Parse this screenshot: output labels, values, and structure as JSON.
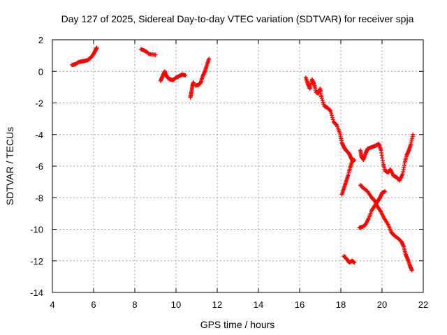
{
  "chart_data": {
    "type": "scatter",
    "title": "Day 127 of 2025, Sidereal Day-to-day VTEC variation (SDTVAR) for receiver spja",
    "xlabel": "GPS time / hours",
    "ylabel": "SDTVAR / TECUs",
    "xlim": [
      4,
      22
    ],
    "ylim": [
      -14,
      2
    ],
    "xticks": [
      4,
      6,
      8,
      10,
      12,
      14,
      16,
      18,
      20,
      22
    ],
    "yticks": [
      -14,
      -12,
      -10,
      -8,
      -6,
      -4,
      -2,
      0,
      2
    ],
    "grid": true,
    "marker": "+",
    "series": [
      {
        "name": "SDTVAR",
        "color": "#ff0000",
        "segments": [
          [
            [
              4.95,
              0.4
            ],
            [
              5.1,
              0.45
            ],
            [
              5.3,
              0.6
            ],
            [
              5.5,
              0.65
            ],
            [
              5.7,
              0.7
            ],
            [
              5.85,
              0.85
            ],
            [
              6.0,
              1.1
            ],
            [
              6.1,
              1.35
            ],
            [
              6.15,
              1.5
            ]
          ],
          [
            [
              8.3,
              1.4
            ],
            [
              8.5,
              1.3
            ],
            [
              8.7,
              1.1
            ],
            [
              9.0,
              1.05
            ]
          ],
          [
            [
              9.25,
              -0.6
            ],
            [
              9.35,
              -0.3
            ],
            [
              9.45,
              0.0
            ],
            [
              9.5,
              -0.2
            ],
            [
              9.6,
              -0.4
            ],
            [
              9.7,
              -0.5
            ],
            [
              9.85,
              -0.55
            ],
            [
              10.0,
              -0.4
            ],
            [
              10.15,
              -0.3
            ],
            [
              10.3,
              -0.2
            ],
            [
              10.45,
              -0.25
            ]
          ],
          [
            [
              10.7,
              -1.65
            ],
            [
              10.75,
              -1.3
            ],
            [
              10.8,
              -0.9
            ],
            [
              10.85,
              -0.7
            ]
          ],
          [
            [
              10.95,
              -0.9
            ],
            [
              11.1,
              -0.85
            ],
            [
              11.2,
              -0.7
            ],
            [
              11.3,
              -0.3
            ],
            [
              11.4,
              0.0
            ],
            [
              11.5,
              0.4
            ],
            [
              11.6,
              0.8
            ]
          ],
          [
            [
              16.3,
              -0.4
            ],
            [
              16.4,
              -0.8
            ],
            [
              16.5,
              -1.1
            ],
            [
              16.6,
              -0.5
            ],
            [
              16.7,
              -0.8
            ],
            [
              16.8,
              -1.3
            ],
            [
              16.9,
              -1.4
            ],
            [
              17.0,
              -1.1
            ],
            [
              17.05,
              -1.6
            ],
            [
              17.2,
              -2.2
            ],
            [
              17.35,
              -2.3
            ],
            [
              17.5,
              -2.5
            ],
            [
              17.65,
              -3.2
            ],
            [
              17.8,
              -3.4
            ],
            [
              17.95,
              -3.9
            ],
            [
              18.05,
              -4.5
            ],
            [
              18.15,
              -4.8
            ],
            [
              18.25,
              -5.0
            ],
            [
              18.4,
              -5.2
            ],
            [
              18.5,
              -5.5
            ],
            [
              18.6,
              -5.7
            ]
          ],
          [
            [
              18.05,
              -7.8
            ],
            [
              18.15,
              -7.4
            ],
            [
              18.25,
              -7.0
            ],
            [
              18.35,
              -6.6
            ],
            [
              18.45,
              -6.1
            ],
            [
              18.55,
              -5.7
            ],
            [
              18.65,
              -5.6
            ]
          ],
          [
            [
              18.95,
              -5.0
            ],
            [
              19.0,
              -5.4
            ],
            [
              19.1,
              -5.6
            ],
            [
              19.2,
              -5.2
            ],
            [
              19.3,
              -4.9
            ],
            [
              19.5,
              -4.8
            ],
            [
              19.7,
              -4.7
            ],
            [
              19.85,
              -4.6
            ],
            [
              19.95,
              -5.0
            ],
            [
              20.05,
              -5.8
            ],
            [
              20.15,
              -6.3
            ],
            [
              20.3,
              -6.4
            ],
            [
              20.4,
              -6.2
            ],
            [
              20.55,
              -6.6
            ],
            [
              20.7,
              -6.7
            ],
            [
              20.85,
              -6.9
            ],
            [
              21.0,
              -6.5
            ],
            [
              21.1,
              -5.8
            ],
            [
              21.2,
              -5.3
            ],
            [
              21.3,
              -5.0
            ],
            [
              21.4,
              -4.6
            ],
            [
              21.5,
              -4.0
            ]
          ],
          [
            [
              18.95,
              -7.2
            ],
            [
              19.1,
              -7.4
            ],
            [
              19.3,
              -7.6
            ],
            [
              19.5,
              -8.0
            ],
            [
              19.65,
              -8.2
            ],
            [
              19.8,
              -8.6
            ],
            [
              19.95,
              -8.9
            ],
            [
              20.1,
              -9.3
            ],
            [
              20.3,
              -9.7
            ],
            [
              20.45,
              -10.2
            ],
            [
              20.6,
              -10.4
            ],
            [
              20.8,
              -10.6
            ],
            [
              20.95,
              -10.8
            ],
            [
              21.05,
              -11.1
            ],
            [
              21.15,
              -11.6
            ],
            [
              21.25,
              -11.9
            ],
            [
              21.35,
              -12.3
            ],
            [
              21.45,
              -12.6
            ]
          ],
          [
            [
              18.9,
              -9.9
            ],
            [
              19.05,
              -9.85
            ],
            [
              19.2,
              -9.7
            ],
            [
              19.35,
              -9.3
            ],
            [
              19.5,
              -8.8
            ],
            [
              19.65,
              -8.5
            ],
            [
              19.8,
              -8.2
            ],
            [
              19.9,
              -8.0
            ],
            [
              20.0,
              -7.7
            ],
            [
              20.15,
              -7.6
            ]
          ],
          [
            [
              18.15,
              -11.7
            ],
            [
              18.3,
              -11.9
            ],
            [
              18.4,
              -12.1
            ],
            [
              18.55,
              -12.0
            ],
            [
              18.65,
              -12.1
            ]
          ]
        ]
      }
    ]
  }
}
